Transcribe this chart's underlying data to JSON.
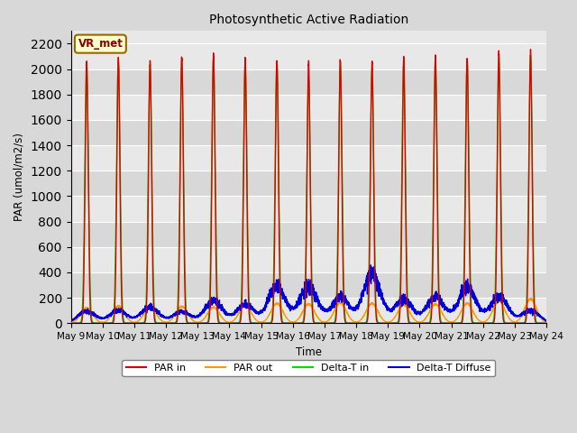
{
  "title": "Photosynthetic Active Radiation",
  "ylabel": "PAR (umol/m2/s)",
  "xlabel": "Time",
  "ylim": [
    0,
    2300
  ],
  "yticks": [
    0,
    200,
    400,
    600,
    800,
    1000,
    1200,
    1400,
    1600,
    1800,
    2000,
    2200
  ],
  "xtick_labels": [
    "May 9",
    "May 10",
    "May 11",
    "May 12",
    "May 13",
    "May 14",
    "May 15",
    "May 16",
    "May 17",
    "May 18",
    "May 19",
    "May 20",
    "May 21",
    "May 22",
    "May 23",
    "May 24"
  ],
  "colors": {
    "PAR_in": "#dd0000",
    "PAR_out": "#ff9900",
    "DeltaT_in": "#00dd00",
    "DeltaT_diffuse": "#0000dd"
  },
  "legend_box_color": "#ffffcc",
  "legend_box_edge": "#996600",
  "annotation_text": "VR_met",
  "annotation_color": "#880000",
  "bg_color_light": "#f0f0f0",
  "bg_color_dark": "#e0e0e0",
  "n_days": 15,
  "peak_par_in": [
    2060,
    2080,
    2050,
    2100,
    2120,
    2070,
    2060,
    2050,
    2070,
    2060,
    2080,
    2100,
    2080,
    2120,
    2140
  ],
  "peak_par_out": [
    120,
    135,
    130,
    130,
    125,
    140,
    155,
    150,
    160,
    155,
    145,
    150,
    155,
    175,
    190
  ],
  "peak_delta_t_in": [
    2050,
    2060,
    2030,
    2050,
    2070,
    2050,
    2050,
    1900,
    2040,
    2000,
    2040,
    2060,
    2060,
    2100,
    2100
  ],
  "peak_delta_t_diffuse": [
    130,
    140,
    180,
    130,
    250,
    210,
    410,
    415,
    290,
    550,
    265,
    290,
    395,
    300,
    140
  ]
}
